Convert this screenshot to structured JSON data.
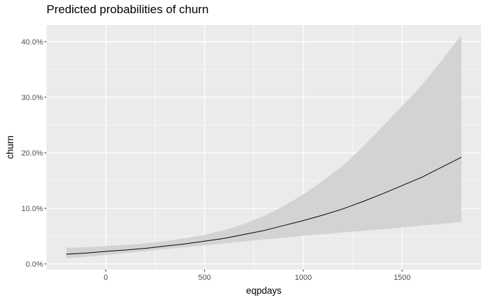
{
  "chart_data": {
    "type": "line",
    "title": "Predicted probabilities of churn",
    "xlabel": "eqpdays",
    "ylabel": "churn",
    "x": [
      -200,
      -100,
      0,
      100,
      200,
      300,
      400,
      500,
      600,
      700,
      800,
      900,
      1000,
      1100,
      1200,
      1300,
      1400,
      1500,
      1600,
      1700,
      1800
    ],
    "series": [
      {
        "values": [
          0.0175,
          0.0195,
          0.0225,
          0.025,
          0.028,
          0.032,
          0.036,
          0.041,
          0.046,
          0.053,
          0.06,
          0.069,
          0.078,
          0.088,
          0.099,
          0.112,
          0.126,
          0.141,
          0.156,
          0.174,
          0.192
        ],
        "lower": [
          0.01,
          0.013,
          0.016,
          0.0195,
          0.023,
          0.0265,
          0.03,
          0.0335,
          0.037,
          0.0405,
          0.044,
          0.047,
          0.0505,
          0.0535,
          0.0565,
          0.0595,
          0.0625,
          0.0655,
          0.069,
          0.072,
          0.076
        ],
        "upper": [
          0.029,
          0.03,
          0.032,
          0.034,
          0.037,
          0.041,
          0.046,
          0.052,
          0.061,
          0.072,
          0.086,
          0.104,
          0.125,
          0.15,
          0.177,
          0.21,
          0.247,
          0.284,
          0.322,
          0.366,
          0.412
        ]
      }
    ],
    "xlim": [
      -300,
      1900
    ],
    "ylim": [
      -0.01,
      0.43
    ],
    "xticks": [
      0,
      500,
      1000,
      1500
    ],
    "xtick_labels": [
      "0",
      "500",
      "1000",
      "1500"
    ],
    "yticks": [
      0,
      0.1,
      0.2,
      0.3,
      0.4
    ],
    "ytick_labels": [
      "0.0%",
      "10.0%",
      "20.0%",
      "30.0%",
      "40.0%"
    ],
    "grid": true,
    "legend": "none",
    "colors": {
      "panel_background": "#EBEBEB",
      "grid_major": "#FFFFFF",
      "ribbon": "#D3D3D3",
      "line": "#000000"
    }
  }
}
